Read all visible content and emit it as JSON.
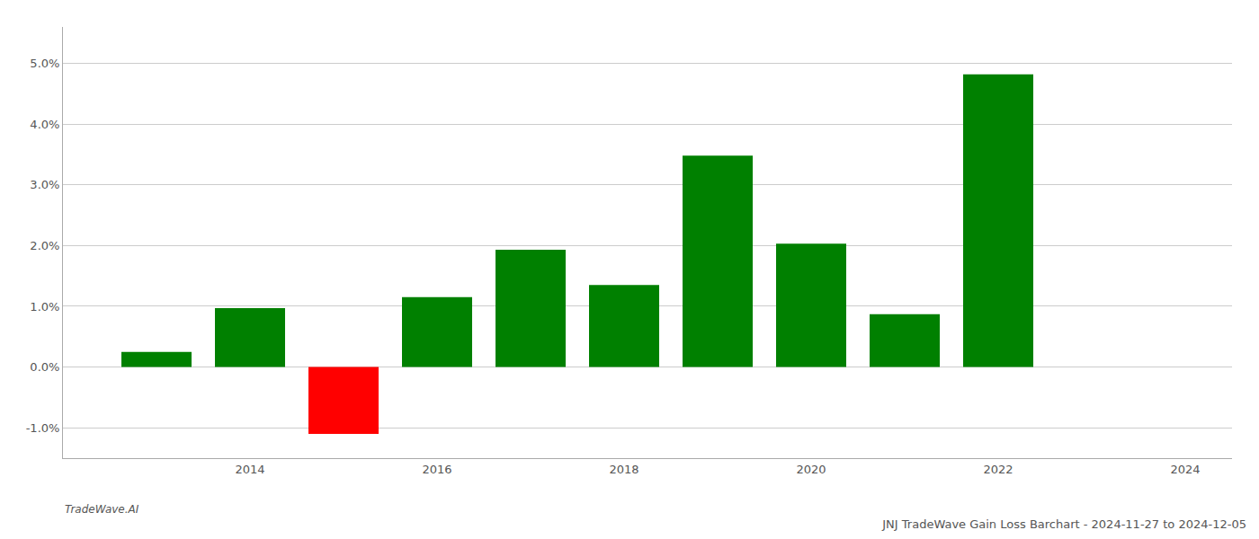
{
  "chart_data": {
    "type": "bar",
    "title": "JNJ TradeWave Gain Loss Barchart - 2024-11-27 to 2024-12-05",
    "annotations": [
      "TradeWave.AI"
    ],
    "x": [
      2013,
      2014,
      2015,
      2016,
      2017,
      2018,
      2019,
      2020,
      2021,
      2022
    ],
    "values": [
      0.0025,
      0.0097,
      -0.011,
      0.0115,
      0.0193,
      0.0135,
      0.0348,
      0.0203,
      0.0087,
      0.0482
    ],
    "colors": [
      "#008000",
      "#008000",
      "#ff0000",
      "#008000",
      "#008000",
      "#008000",
      "#008000",
      "#008000",
      "#008000",
      "#008000"
    ],
    "xlim": [
      2012.0,
      2024.5
    ],
    "xticks": [
      2014,
      2016,
      2018,
      2020,
      2022,
      2024
    ],
    "ylim": [
      -0.015,
      0.056
    ],
    "yticks": [
      {
        "value": -0.01,
        "label": "-1.0%"
      },
      {
        "value": 0.0,
        "label": "0.0%"
      },
      {
        "value": 0.01,
        "label": "1.0%"
      },
      {
        "value": 0.02,
        "label": "2.0%"
      },
      {
        "value": 0.03,
        "label": "3.0%"
      },
      {
        "value": 0.04,
        "label": "4.0%"
      },
      {
        "value": 0.05,
        "label": "5.0%"
      }
    ],
    "grid": true
  }
}
